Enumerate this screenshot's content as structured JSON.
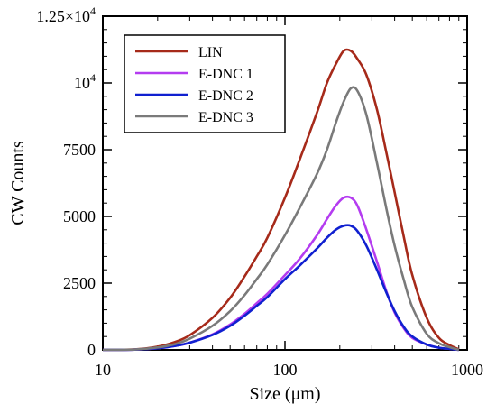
{
  "chart_data": {
    "type": "line",
    "xlabel": "Size (μm)",
    "ylabel": "CW Counts",
    "x_scale": "log",
    "xlim": [
      10,
      1000
    ],
    "ylim": [
      0,
      12500
    ],
    "x_ticks": [
      {
        "value": 10,
        "label": "10"
      },
      {
        "value": 100,
        "label": "100"
      },
      {
        "value": 1000,
        "label": "1000"
      }
    ],
    "y_ticks": [
      {
        "value": 0,
        "label": "0",
        "sup": ""
      },
      {
        "value": 2500,
        "label": "2500",
        "sup": ""
      },
      {
        "value": 5000,
        "label": "5000",
        "sup": ""
      },
      {
        "value": 7500,
        "label": "7500",
        "sup": ""
      },
      {
        "value": 10000,
        "label": "10",
        "sup": "4"
      },
      {
        "value": 12500,
        "label": "1.25×10",
        "sup": "4"
      }
    ],
    "grid": false,
    "legend_position": "top-left",
    "x": [
      10,
      15,
      20,
      25,
      30,
      40,
      50,
      60,
      70,
      80,
      100,
      120,
      150,
      170,
      190,
      210,
      230,
      250,
      280,
      320,
      360,
      400,
      450,
      500,
      600,
      700,
      800,
      900
    ],
    "series": [
      {
        "name": "LIN",
        "color": "#a62a1a",
        "values": [
          0,
          20,
          120,
          300,
          550,
          1200,
          1950,
          2750,
          3500,
          4200,
          5700,
          7100,
          8900,
          10000,
          10700,
          11200,
          11200,
          10900,
          10300,
          9000,
          7400,
          5900,
          4200,
          2800,
          1200,
          450,
          180,
          20
        ]
      },
      {
        "name": "E-DNC 1",
        "color": "#b43cf0",
        "values": [
          0,
          10,
          60,
          150,
          270,
          580,
          950,
          1350,
          1750,
          2100,
          2800,
          3400,
          4300,
          4900,
          5400,
          5700,
          5700,
          5400,
          4500,
          3300,
          2200,
          1400,
          800,
          450,
          200,
          80,
          40,
          0
        ]
      },
      {
        "name": "E-DNC 2",
        "color": "#1020d0",
        "values": [
          0,
          10,
          60,
          150,
          270,
          560,
          900,
          1280,
          1650,
          1980,
          2650,
          3150,
          3800,
          4200,
          4500,
          4650,
          4650,
          4450,
          3900,
          3000,
          2150,
          1450,
          850,
          500,
          200,
          80,
          40,
          0
        ]
      },
      {
        "name": "E-DNC 3",
        "color": "#7a7a7a",
        "values": [
          0,
          15,
          90,
          220,
          420,
          900,
          1450,
          2050,
          2650,
          3200,
          4300,
          5300,
          6600,
          7500,
          8500,
          9300,
          9800,
          9700,
          8800,
          7000,
          5300,
          3900,
          2600,
          1600,
          600,
          250,
          100,
          0
        ]
      }
    ]
  }
}
